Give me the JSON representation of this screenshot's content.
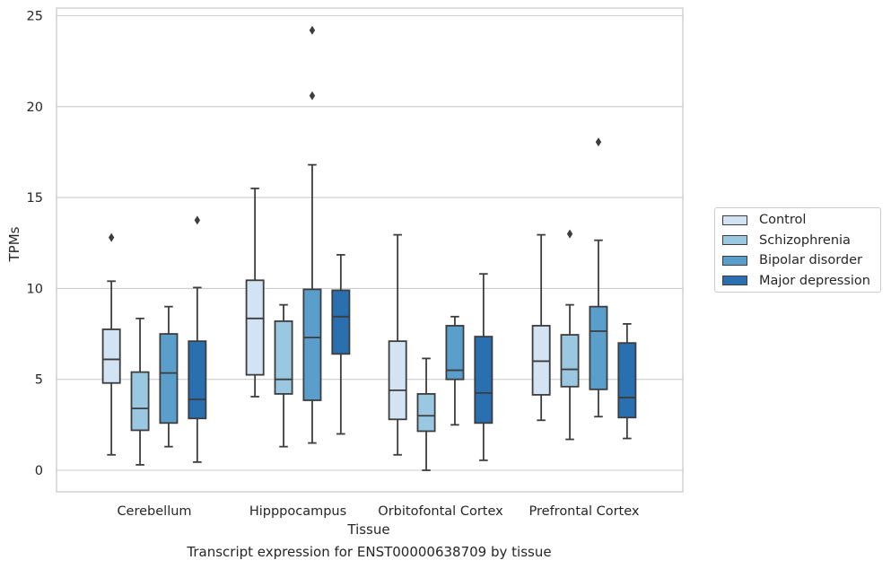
{
  "chart_data": {
    "type": "box",
    "xlabel": "Tissue",
    "ylabel": "TPMs",
    "ylim": [
      -1.2,
      25.5
    ],
    "yticks": [
      0,
      5,
      10,
      15,
      20,
      25
    ],
    "grid": true,
    "legend_position": "right",
    "categories": [
      "Cerebellum",
      "Hipppocampus",
      "Orbitofontal Cortex",
      "Prefrontal Cortex"
    ],
    "series": [
      {
        "name": "Control",
        "color": "#d2e3f3",
        "boxes": [
          {
            "whislo": 0.85,
            "q1": 4.8,
            "med": 6.1,
            "q3": 7.75,
            "whishi": 10.4,
            "fliers": [
              12.8
            ]
          },
          {
            "whislo": 4.05,
            "q1": 5.25,
            "med": 8.35,
            "q3": 10.45,
            "whishi": 15.5,
            "fliers": []
          },
          {
            "whislo": 0.85,
            "q1": 2.8,
            "med": 4.4,
            "q3": 7.1,
            "whishi": 12.95,
            "fliers": []
          },
          {
            "whislo": 2.75,
            "q1": 4.15,
            "med": 6.0,
            "q3": 7.95,
            "whishi": 12.95,
            "fliers": []
          }
        ]
      },
      {
        "name": "Schizophrenia",
        "color": "#9ac8e0",
        "boxes": [
          {
            "whislo": 0.3,
            "q1": 2.2,
            "med": 3.4,
            "q3": 5.4,
            "whishi": 8.35,
            "fliers": []
          },
          {
            "whislo": 1.3,
            "q1": 4.2,
            "med": 5.0,
            "q3": 8.2,
            "whishi": 9.1,
            "fliers": []
          },
          {
            "whislo": 0.0,
            "q1": 2.15,
            "med": 3.0,
            "q3": 4.2,
            "whishi": 6.15,
            "fliers": []
          },
          {
            "whislo": 1.7,
            "q1": 4.6,
            "med": 5.55,
            "q3": 7.45,
            "whishi": 9.1,
            "fliers": [
              13.0
            ]
          }
        ]
      },
      {
        "name": "Bipolar disorder",
        "color": "#5a9ecc",
        "boxes": [
          {
            "whislo": 1.3,
            "q1": 2.6,
            "med": 5.35,
            "q3": 7.5,
            "whishi": 9.0,
            "fliers": []
          },
          {
            "whislo": 1.5,
            "q1": 3.85,
            "med": 7.3,
            "q3": 9.95,
            "whishi": 16.8,
            "fliers": [
              20.6,
              24.2
            ]
          },
          {
            "whislo": 2.5,
            "q1": 5.0,
            "med": 5.5,
            "q3": 7.95,
            "whishi": 8.45,
            "fliers": []
          },
          {
            "whislo": 2.95,
            "q1": 4.45,
            "med": 7.65,
            "q3": 9.0,
            "whishi": 12.65,
            "fliers": [
              18.05
            ]
          }
        ]
      },
      {
        "name": "Major depression",
        "color": "#2a6fb0",
        "boxes": [
          {
            "whislo": 0.45,
            "q1": 2.85,
            "med": 3.9,
            "q3": 7.1,
            "whishi": 10.05,
            "fliers": [
              13.75
            ]
          },
          {
            "whislo": 2.0,
            "q1": 6.4,
            "med": 8.45,
            "q3": 9.9,
            "whishi": 11.85,
            "fliers": []
          },
          {
            "whislo": 0.55,
            "q1": 2.6,
            "med": 4.25,
            "q3": 7.35,
            "whishi": 10.8,
            "fliers": []
          },
          {
            "whislo": 1.75,
            "q1": 2.9,
            "med": 4.0,
            "q3": 7.0,
            "whishi": 8.05,
            "fliers": []
          }
        ]
      }
    ]
  },
  "caption": "Transcript expression for ENST00000638709 by tissue"
}
